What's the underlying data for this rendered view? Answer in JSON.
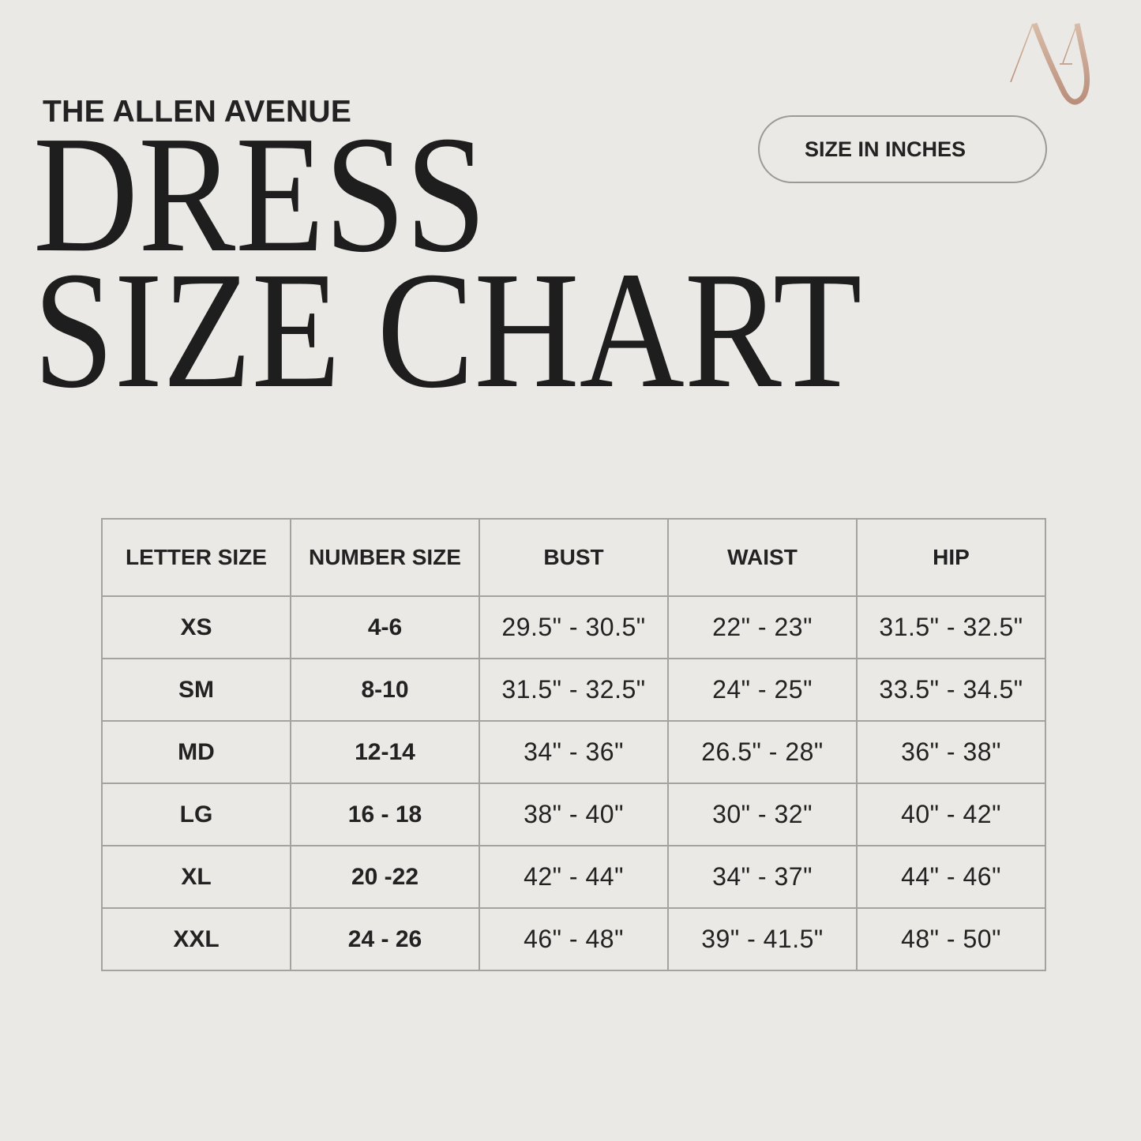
{
  "brand": "THE ALLEN AVENUE",
  "title_line1": "DRESS",
  "title_line2": "SIZE CHART",
  "unit_badge": "SIZE IN INCHES",
  "logo": {
    "text": "AA",
    "color": "#c9a28e"
  },
  "table": {
    "headers": [
      "LETTER SIZE",
      "NUMBER SIZE",
      "BUST",
      "WAIST",
      "HIP"
    ],
    "rows": [
      [
        "XS",
        "4-6",
        "29.5\" - 30.5\"",
        "22\" - 23\"",
        "31.5\" - 32.5\""
      ],
      [
        "SM",
        "8-10",
        "31.5\" - 32.5\"",
        "24\" - 25\"",
        "33.5\" - 34.5\""
      ],
      [
        "MD",
        "12-14",
        "34\" - 36\"",
        "26.5\" - 28\"",
        "36\" - 38\""
      ],
      [
        "LG",
        "16 - 18",
        "38\" - 40\"",
        "30\" - 32\"",
        "40\" - 42\""
      ],
      [
        "XL",
        "20 -22",
        "42\" - 44\"",
        "34\" - 37\"",
        "44\" - 46\""
      ],
      [
        "XXL",
        "24 - 26",
        "46\" - 48\"",
        "39\" - 41.5\"",
        "48\" - 50\""
      ]
    ]
  }
}
